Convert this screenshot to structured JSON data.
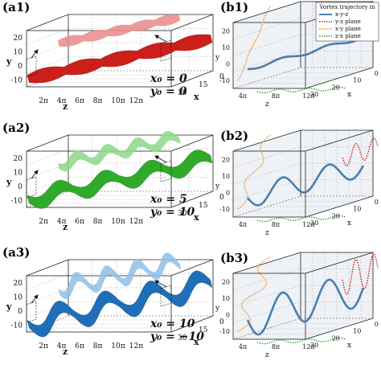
{
  "chart_data": [
    {
      "panel": "(a1)",
      "type": "3d-surface",
      "color": "#cc1f1a",
      "ghost_color": "#e88a8a",
      "params": {
        "x0": "x₀ = 0",
        "y0": "y₀ = 0"
      },
      "y_ticks": [
        "20",
        "10",
        "0",
        "-10"
      ],
      "z_ticks": [
        "2π",
        "4π",
        "6π",
        "8π",
        "10π",
        "12π"
      ],
      "x_ticks": [
        "0",
        "15",
        "30"
      ],
      "axis_labels": {
        "y": "y",
        "z": "z",
        "x": "x"
      },
      "wave_amplitude": 0,
      "bulges": 5
    },
    {
      "panel": "(a2)",
      "type": "3d-surface",
      "color": "#2faa2a",
      "ghost_color": "#8fd88a",
      "params": {
        "x0": "x₀ = 5",
        "y0": "y₀ = 10"
      },
      "y_ticks": [
        "20",
        "10",
        "0",
        "-10"
      ],
      "z_ticks": [
        "2π",
        "4π",
        "6π",
        "8π",
        "10π",
        "12π"
      ],
      "x_ticks": [
        "0",
        "15",
        "30"
      ],
      "axis_labels": {
        "y": "y",
        "z": "z",
        "x": "x"
      },
      "wave_amplitude": 0.6,
      "bulges": 4
    },
    {
      "panel": "(a3)",
      "type": "3d-surface",
      "color": "#1f6fb8",
      "ghost_color": "#8fc0e8",
      "params": {
        "x0": "x₀ = 10",
        "y0": "y₀ = −10"
      },
      "y_ticks": [
        "20",
        "10",
        "0",
        "-10"
      ],
      "z_ticks": [
        "2π",
        "4π",
        "6π",
        "8π",
        "10π",
        "12π"
      ],
      "x_ticks": [
        "0",
        "15",
        "30"
      ],
      "axis_labels": {
        "y": "y",
        "z": "z",
        "x": "x"
      },
      "wave_amplitude": 1,
      "bulges": 4
    },
    {
      "panel": "(b1)",
      "type": "line",
      "legend_title": "Vortex trajectory in",
      "series": [
        {
          "name": "x-y-z",
          "color": "#4a7fb0",
          "style": "solid"
        },
        {
          "name": "y-z plane",
          "color": "#cc2020",
          "style": "dotted"
        },
        {
          "name": "x-y plane",
          "color": "#f0901a",
          "style": "dotted"
        },
        {
          "name": "z-x plane",
          "color": "#2ea02a",
          "style": "dotted"
        }
      ],
      "y_ticks": [
        "20",
        "10",
        "0",
        "-10"
      ],
      "z_ticks": [
        "4π",
        "8π",
        "12π"
      ],
      "x_ticks": [
        "0",
        "10",
        "20",
        "30"
      ],
      "axis_labels": {
        "y": "y",
        "z": "z",
        "x": "x"
      },
      "amplitude": 0.1
    },
    {
      "panel": "(b2)",
      "type": "line",
      "y_ticks": [
        "20",
        "10",
        "0",
        "-10"
      ],
      "z_ticks": [
        "4π",
        "8π",
        "12π"
      ],
      "x_ticks": [
        "0",
        "10",
        "20",
        "30"
      ],
      "axis_labels": {
        "y": "y",
        "z": "z",
        "x": "x"
      },
      "amplitude": 0.6
    },
    {
      "panel": "(b3)",
      "type": "line",
      "y_ticks": [
        "20",
        "10",
        "0",
        "-10"
      ],
      "z_ticks": [
        "4π",
        "8π",
        "12π"
      ],
      "x_ticks": [
        "0",
        "10",
        "20",
        "30"
      ],
      "axis_labels": {
        "y": "y",
        "z": "z",
        "x": "x"
      },
      "amplitude": 1
    }
  ]
}
